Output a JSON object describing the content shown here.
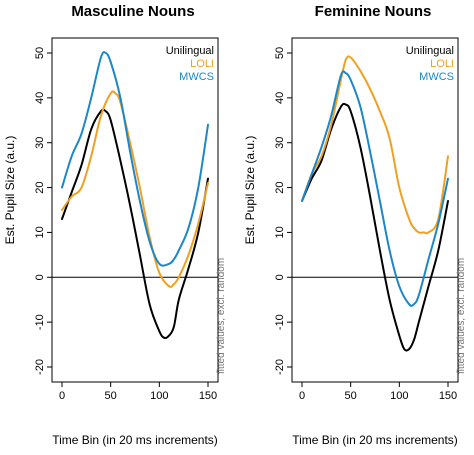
{
  "chart_data": [
    {
      "type": "line",
      "title": "Masculine Nouns",
      "xlabel": "Time Bin (in 20 ms increments)",
      "ylabel": "Est. Pupil Size (a.u.)",
      "xlim": [
        0,
        150
      ],
      "ylim": [
        -20,
        50
      ],
      "x_ticks": [
        "0",
        "50",
        "100",
        "150"
      ],
      "y_ticks": [
        "-20",
        "-10",
        "0",
        "10",
        "20",
        "30",
        "40",
        "50"
      ],
      "reference_line": 0,
      "legend_position": "top-right",
      "annotation": "fitted values, excl. random",
      "series": [
        {
          "name": "Unilingual",
          "color": "#000000",
          "x": [
            0,
            10,
            20,
            30,
            40,
            45,
            50,
            60,
            70,
            80,
            90,
            100,
            105,
            110,
            115,
            120,
            130,
            140,
            150
          ],
          "y": [
            13,
            19,
            25,
            33,
            37,
            37,
            35,
            26,
            16,
            5,
            -6,
            -12,
            -13.5,
            -13,
            -11,
            -5,
            2,
            10,
            22
          ]
        },
        {
          "name": "LOLI",
          "color": "#f0a020",
          "x": [
            0,
            10,
            20,
            30,
            40,
            50,
            55,
            60,
            70,
            80,
            90,
            100,
            110,
            115,
            120,
            130,
            140,
            150
          ],
          "y": [
            15,
            18,
            20,
            27,
            36,
            41,
            41,
            39,
            30,
            20,
            9,
            1,
            -2,
            -1.5,
            0,
            5,
            12,
            21
          ]
        },
        {
          "name": "MWCS",
          "color": "#1b87c9",
          "x": [
            0,
            10,
            20,
            30,
            40,
            45,
            50,
            60,
            70,
            80,
            90,
            100,
            110,
            115,
            120,
            130,
            140,
            150
          ],
          "y": [
            20,
            27,
            32,
            40,
            49,
            50,
            48,
            40,
            28,
            17,
            8,
            3,
            3,
            4,
            6,
            11,
            20,
            34
          ]
        }
      ]
    },
    {
      "type": "line",
      "title": "Feminine Nouns",
      "xlabel": "Time Bin (in 20 ms increments)",
      "ylabel": "Est. Pupil Size (a.u.)",
      "xlim": [
        0,
        150
      ],
      "ylim": [
        -20,
        50
      ],
      "x_ticks": [
        "0",
        "50",
        "100",
        "150"
      ],
      "y_ticks": [
        "-20",
        "-10",
        "0",
        "10",
        "20",
        "30",
        "40",
        "50"
      ],
      "reference_line": 0,
      "legend_position": "top-right",
      "annotation": "fitted values, excl. random",
      "series": [
        {
          "name": "Unilingual",
          "color": "#000000",
          "x": [
            0,
            10,
            20,
            30,
            40,
            45,
            50,
            60,
            70,
            80,
            90,
            100,
            105,
            110,
            115,
            120,
            130,
            140,
            150
          ],
          "y": [
            17,
            22,
            26,
            33,
            38,
            38.5,
            37,
            29,
            18,
            6,
            -5,
            -13,
            -16,
            -16,
            -14,
            -10,
            -2,
            6,
            17
          ]
        },
        {
          "name": "LOLI",
          "color": "#f0a020",
          "x": [
            0,
            10,
            20,
            30,
            40,
            45,
            50,
            60,
            70,
            80,
            90,
            100,
            110,
            115,
            120,
            125,
            130,
            140,
            150
          ],
          "y": [
            17,
            23,
            27,
            34,
            44,
            48.5,
            49,
            46,
            42,
            37,
            31,
            20,
            13,
            11,
            10,
            10,
            10,
            13,
            27
          ]
        },
        {
          "name": "MWCS",
          "color": "#1b87c9",
          "x": [
            0,
            10,
            20,
            30,
            40,
            45,
            50,
            60,
            70,
            80,
            90,
            100,
            110,
            115,
            120,
            130,
            140,
            150
          ],
          "y": [
            17,
            23,
            29,
            36,
            45,
            45.5,
            44,
            38,
            28,
            17,
            6,
            -2,
            -6,
            -6,
            -4,
            4,
            12,
            22
          ]
        }
      ]
    }
  ]
}
